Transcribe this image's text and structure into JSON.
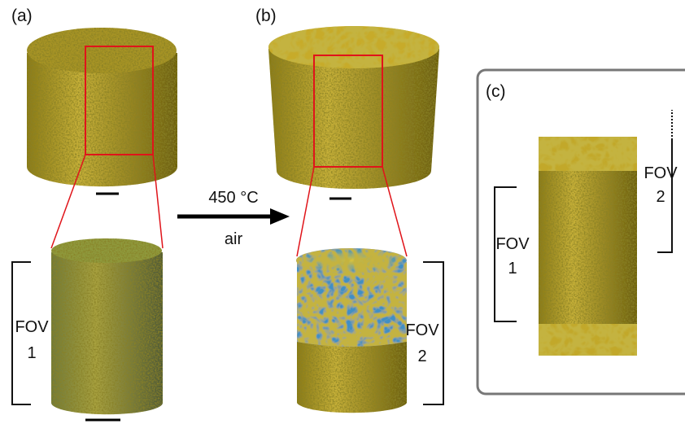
{
  "panels": [
    {
      "label": "(a)",
      "fov": {
        "text": "FOV",
        "number": "1"
      }
    },
    {
      "label": "(b)",
      "fov": {
        "text": "FOV",
        "number": "2"
      }
    },
    {
      "label": "(c)",
      "fovs": [
        {
          "text": "FOV",
          "number": "1"
        },
        {
          "text": "FOV",
          "number": "2"
        }
      ]
    }
  ],
  "process": {
    "temperature": "450 °C",
    "atmosphere": "air"
  }
}
